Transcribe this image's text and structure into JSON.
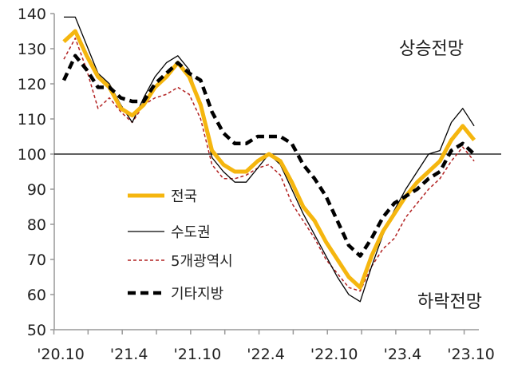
{
  "chart_data": {
    "type": "line",
    "title": "",
    "xlabel": "",
    "ylabel": "",
    "ylim": [
      50,
      140
    ],
    "yticks": [
      50,
      60,
      70,
      80,
      90,
      100,
      110,
      120,
      130,
      140
    ],
    "xtick_labels": [
      "'20.10",
      "'21.4",
      "'21.10",
      "'22.4",
      "'22.10",
      "'23.4",
      "'23.10"
    ],
    "xtick_label_month_index": [
      0,
      6,
      12,
      18,
      24,
      30,
      36
    ],
    "months": 37,
    "reference_line": 100,
    "annotations": {
      "up": "상승전망",
      "down": "하락전망"
    },
    "legend_position": "center-left",
    "series": [
      {
        "name": "전국",
        "color": "#F5B60F",
        "style": "solid-thick",
        "values": [
          132,
          135,
          128,
          122,
          119,
          113,
          111,
          114,
          119,
          122,
          126,
          122,
          114,
          101,
          97,
          95,
          95,
          98,
          100,
          98,
          92,
          85,
          81,
          75,
          70,
          65,
          62,
          71,
          78,
          83,
          88,
          92,
          95,
          98,
          104,
          108,
          104
        ]
      },
      {
        "name": "수도권",
        "color": "#000000",
        "style": "solid-thin",
        "values": [
          139,
          139,
          131,
          123,
          120,
          114,
          109,
          116,
          122,
          126,
          128,
          124,
          113,
          99,
          95,
          92,
          92,
          96,
          100,
          97,
          90,
          83,
          77,
          71,
          65,
          60,
          58,
          68,
          77,
          84,
          90,
          95,
          100,
          101,
          109,
          113,
          108
        ]
      },
      {
        "name": "5개광역시",
        "color": "#B22222",
        "style": "dashed-thin",
        "values": [
          127,
          133,
          124,
          113,
          116,
          112,
          109,
          114,
          116,
          117,
          119,
          117,
          110,
          97,
          93,
          93,
          94,
          96,
          97,
          94,
          86,
          81,
          76,
          70,
          66,
          62,
          61,
          68,
          73,
          76,
          82,
          86,
          90,
          93,
          98,
          102,
          98
        ]
      },
      {
        "name": "기타지방",
        "color": "#000000",
        "style": "dashed-thick",
        "values": [
          121,
          128,
          124,
          119,
          119,
          116,
          115,
          115,
          120,
          123,
          126,
          123,
          121,
          112,
          106,
          103,
          103,
          105,
          105,
          105,
          103,
          97,
          93,
          88,
          81,
          74,
          71,
          76,
          82,
          86,
          88,
          90,
          93,
          95,
          101,
          103,
          100
        ]
      }
    ]
  }
}
